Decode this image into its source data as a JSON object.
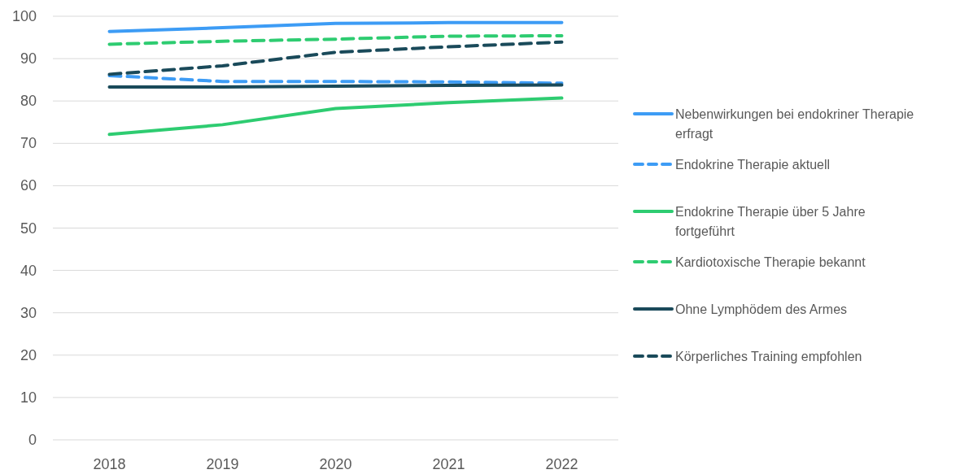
{
  "chart_data": {
    "type": "line",
    "categories": [
      "2018",
      "2019",
      "2020",
      "2021",
      "2022"
    ],
    "ylim": [
      0,
      100
    ],
    "yticks": [
      0,
      10,
      20,
      30,
      40,
      50,
      60,
      70,
      80,
      90,
      100
    ],
    "grid": "y",
    "legend": "right",
    "series": [
      {
        "name": "Nebenwirkungen bei endokriner Therapie erfragt",
        "color": "#3d9cf5",
        "line_style": "solid",
        "values": [
          96.4,
          97.3,
          98.3,
          98.5,
          98.5
        ]
      },
      {
        "name": "Endokrine Therapie aktuell",
        "color": "#3d9cf5",
        "line_style": "dashed",
        "values": [
          86,
          84.6,
          84.6,
          84.5,
          84.2
        ]
      },
      {
        "name": "Endokrine Therapie über 5 Jahre fortgeführt",
        "color": "#2ecc71",
        "line_style": "solid",
        "values": [
          72.1,
          74.4,
          78.2,
          79.6,
          80.7
        ]
      },
      {
        "name": "Kardiotoxische Therapie bekannt",
        "color": "#2ecc71",
        "line_style": "dashed",
        "values": [
          93.4,
          94.1,
          94.6,
          95.3,
          95.4
        ]
      },
      {
        "name": "Ohne Lymphödem des Armes",
        "color": "#1a4a5a",
        "line_style": "solid",
        "values": [
          83.3,
          83.3,
          83.5,
          83.7,
          83.8
        ]
      },
      {
        "name": "Körperliches Training empfohlen",
        "color": "#1a4a5a",
        "line_style": "dashed",
        "values": [
          86.3,
          88.3,
          91.5,
          92.8,
          93.9
        ]
      }
    ]
  }
}
